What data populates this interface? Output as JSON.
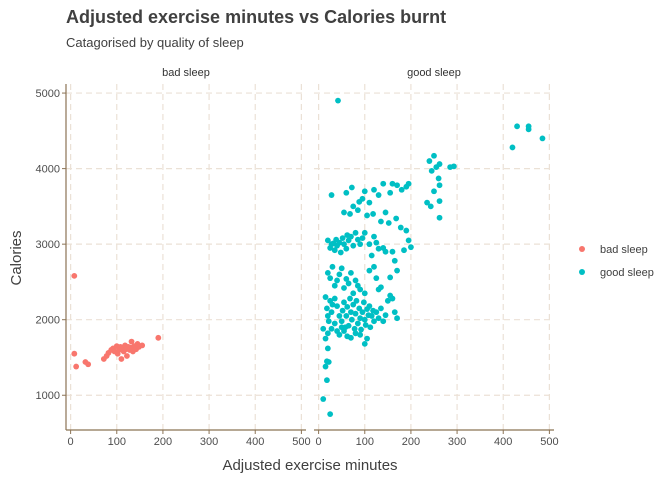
{
  "chart_data": {
    "type": "scatter",
    "title": "Adjusted exercise minutes vs Calories burnt",
    "subtitle": "Catagorised by quality of sleep",
    "xlabel": "Adjusted exercise minutes",
    "ylabel": "Calories",
    "xlim": [
      -10,
      510
    ],
    "ylim": [
      540,
      5120
    ],
    "x_ticks": [
      0,
      100,
      200,
      300,
      400,
      500
    ],
    "y_ticks": [
      1000,
      2000,
      3000,
      4000,
      5000
    ],
    "grid": true,
    "legend_position": "right",
    "legend": {
      "items": [
        {
          "label": "bad sleep",
          "color": "#F8766D"
        },
        {
          "label": "good sleep",
          "color": "#00BFC4"
        }
      ]
    },
    "panels": [
      {
        "strip": "bad sleep",
        "series_name": "bad sleep",
        "color": "#F8766D",
        "points": [
          [
            8,
            2580
          ],
          [
            8,
            1550
          ],
          [
            12,
            1380
          ],
          [
            32,
            1440
          ],
          [
            38,
            1410
          ],
          [
            72,
            1480
          ],
          [
            78,
            1520
          ],
          [
            82,
            1560
          ],
          [
            88,
            1600
          ],
          [
            92,
            1620
          ],
          [
            95,
            1580
          ],
          [
            100,
            1650
          ],
          [
            102,
            1550
          ],
          [
            105,
            1600
          ],
          [
            108,
            1640
          ],
          [
            110,
            1480
          ],
          [
            112,
            1620
          ],
          [
            115,
            1580
          ],
          [
            118,
            1660
          ],
          [
            120,
            1610
          ],
          [
            122,
            1520
          ],
          [
            125,
            1640
          ],
          [
            128,
            1600
          ],
          [
            130,
            1630
          ],
          [
            132,
            1710
          ],
          [
            135,
            1580
          ],
          [
            138,
            1650
          ],
          [
            142,
            1610
          ],
          [
            145,
            1680
          ],
          [
            148,
            1640
          ],
          [
            155,
            1660
          ],
          [
            190,
            1760
          ]
        ]
      },
      {
        "strip": "good sleep",
        "series_name": "good sleep",
        "color": "#00BFC4",
        "points": [
          [
            42,
            4900
          ],
          [
            430,
            4560
          ],
          [
            455,
            4560
          ],
          [
            455,
            4520
          ],
          [
            420,
            4280
          ],
          [
            485,
            4400
          ],
          [
            250,
            4170
          ],
          [
            240,
            4100
          ],
          [
            255,
            4020
          ],
          [
            262,
            4060
          ],
          [
            245,
            3970
          ],
          [
            285,
            4020
          ],
          [
            293,
            4030
          ],
          [
            260,
            3870
          ],
          [
            262,
            3780
          ],
          [
            250,
            3700
          ],
          [
            262,
            3570
          ],
          [
            262,
            3350
          ],
          [
            235,
            3550
          ],
          [
            243,
            3500
          ],
          [
            195,
            3800
          ],
          [
            190,
            3760
          ],
          [
            180,
            3720
          ],
          [
            170,
            3780
          ],
          [
            160,
            3800
          ],
          [
            155,
            3680
          ],
          [
            140,
            3800
          ],
          [
            130,
            3650
          ],
          [
            120,
            3720
          ],
          [
            110,
            3550
          ],
          [
            100,
            3700
          ],
          [
            95,
            3600
          ],
          [
            88,
            3560
          ],
          [
            72,
            3750
          ],
          [
            60,
            3680
          ],
          [
            28,
            3650
          ],
          [
            55,
            3420
          ],
          [
            68,
            3400
          ],
          [
            75,
            3500
          ],
          [
            85,
            3450
          ],
          [
            105,
            3380
          ],
          [
            118,
            3400
          ],
          [
            135,
            3300
          ],
          [
            145,
            3420
          ],
          [
            152,
            3280
          ],
          [
            168,
            3340
          ],
          [
            178,
            3220
          ],
          [
            190,
            3180
          ],
          [
            200,
            2960
          ],
          [
            195,
            3050
          ],
          [
            185,
            2920
          ],
          [
            160,
            2900
          ],
          [
            165,
            2780
          ],
          [
            170,
            2650
          ],
          [
            155,
            2560
          ],
          [
            20,
            3050
          ],
          [
            25,
            2950
          ],
          [
            28,
            3000
          ],
          [
            32,
            3010
          ],
          [
            35,
            2920
          ],
          [
            38,
            3060
          ],
          [
            40,
            2980
          ],
          [
            45,
            3020
          ],
          [
            48,
            2890
          ],
          [
            52,
            3080
          ],
          [
            55,
            3000
          ],
          [
            60,
            2940
          ],
          [
            62,
            3120
          ],
          [
            65,
            3050
          ],
          [
            70,
            3100
          ],
          [
            75,
            2980
          ],
          [
            80,
            3150
          ],
          [
            85,
            3060
          ],
          [
            90,
            3000
          ],
          [
            95,
            3080
          ],
          [
            100,
            3150
          ],
          [
            110,
            3000
          ],
          [
            115,
            2850
          ],
          [
            120,
            3100
          ],
          [
            125,
            3020
          ],
          [
            130,
            2940
          ],
          [
            140,
            2950
          ],
          [
            145,
            2900
          ],
          [
            20,
            2620
          ],
          [
            25,
            2550
          ],
          [
            30,
            2700
          ],
          [
            35,
            2450
          ],
          [
            40,
            2520
          ],
          [
            45,
            2600
          ],
          [
            50,
            2680
          ],
          [
            55,
            2420
          ],
          [
            60,
            2540
          ],
          [
            65,
            2480
          ],
          [
            70,
            2620
          ],
          [
            75,
            2350
          ],
          [
            80,
            2520
          ],
          [
            85,
            2450
          ],
          [
            90,
            2400
          ],
          [
            100,
            2350
          ],
          [
            110,
            2650
          ],
          [
            120,
            2700
          ],
          [
            125,
            2550
          ],
          [
            130,
            2400
          ],
          [
            135,
            2430
          ],
          [
            15,
            2300
          ],
          [
            18,
            2150
          ],
          [
            20,
            2050
          ],
          [
            22,
            1980
          ],
          [
            25,
            2250
          ],
          [
            28,
            2100
          ],
          [
            30,
            2200
          ],
          [
            35,
            2280
          ],
          [
            40,
            2180
          ],
          [
            45,
            2050
          ],
          [
            50,
            1980
          ],
          [
            52,
            2120
          ],
          [
            55,
            2230
          ],
          [
            58,
            1900
          ],
          [
            60,
            2050
          ],
          [
            62,
            2170
          ],
          [
            65,
            1920
          ],
          [
            68,
            2280
          ],
          [
            70,
            2100
          ],
          [
            72,
            2000
          ],
          [
            75,
            2200
          ],
          [
            78,
            1880
          ],
          [
            80,
            2080
          ],
          [
            82,
            2250
          ],
          [
            85,
            1950
          ],
          [
            88,
            2150
          ],
          [
            90,
            2020
          ],
          [
            92,
            1870
          ],
          [
            95,
            2100
          ],
          [
            98,
            2230
          ],
          [
            100,
            2000
          ],
          [
            102,
            1930
          ],
          [
            105,
            2140
          ],
          [
            108,
            2060
          ],
          [
            110,
            2180
          ],
          [
            112,
            1900
          ],
          [
            115,
            2050
          ],
          [
            118,
            2120
          ],
          [
            120,
            1980
          ],
          [
            125,
            2100
          ],
          [
            130,
            2020
          ],
          [
            135,
            2150
          ],
          [
            140,
            1980
          ],
          [
            145,
            2060
          ],
          [
            150,
            2250
          ],
          [
            155,
            2320
          ],
          [
            160,
            2280
          ],
          [
            165,
            2100
          ],
          [
            170,
            2020
          ],
          [
            10,
            1880
          ],
          [
            15,
            1750
          ],
          [
            20,
            1820
          ],
          [
            28,
            1880
          ],
          [
            35,
            1950
          ],
          [
            40,
            1850
          ],
          [
            45,
            1800
          ],
          [
            50,
            1900
          ],
          [
            55,
            1850
          ],
          [
            62,
            1780
          ],
          [
            70,
            1760
          ],
          [
            80,
            1820
          ],
          [
            90,
            1800
          ],
          [
            100,
            1680
          ],
          [
            105,
            1750
          ],
          [
            20,
            1620
          ],
          [
            18,
            1450
          ],
          [
            22,
            1440
          ],
          [
            15,
            1380
          ],
          [
            18,
            1200
          ],
          [
            10,
            950
          ],
          [
            25,
            750
          ]
        ]
      }
    ]
  }
}
